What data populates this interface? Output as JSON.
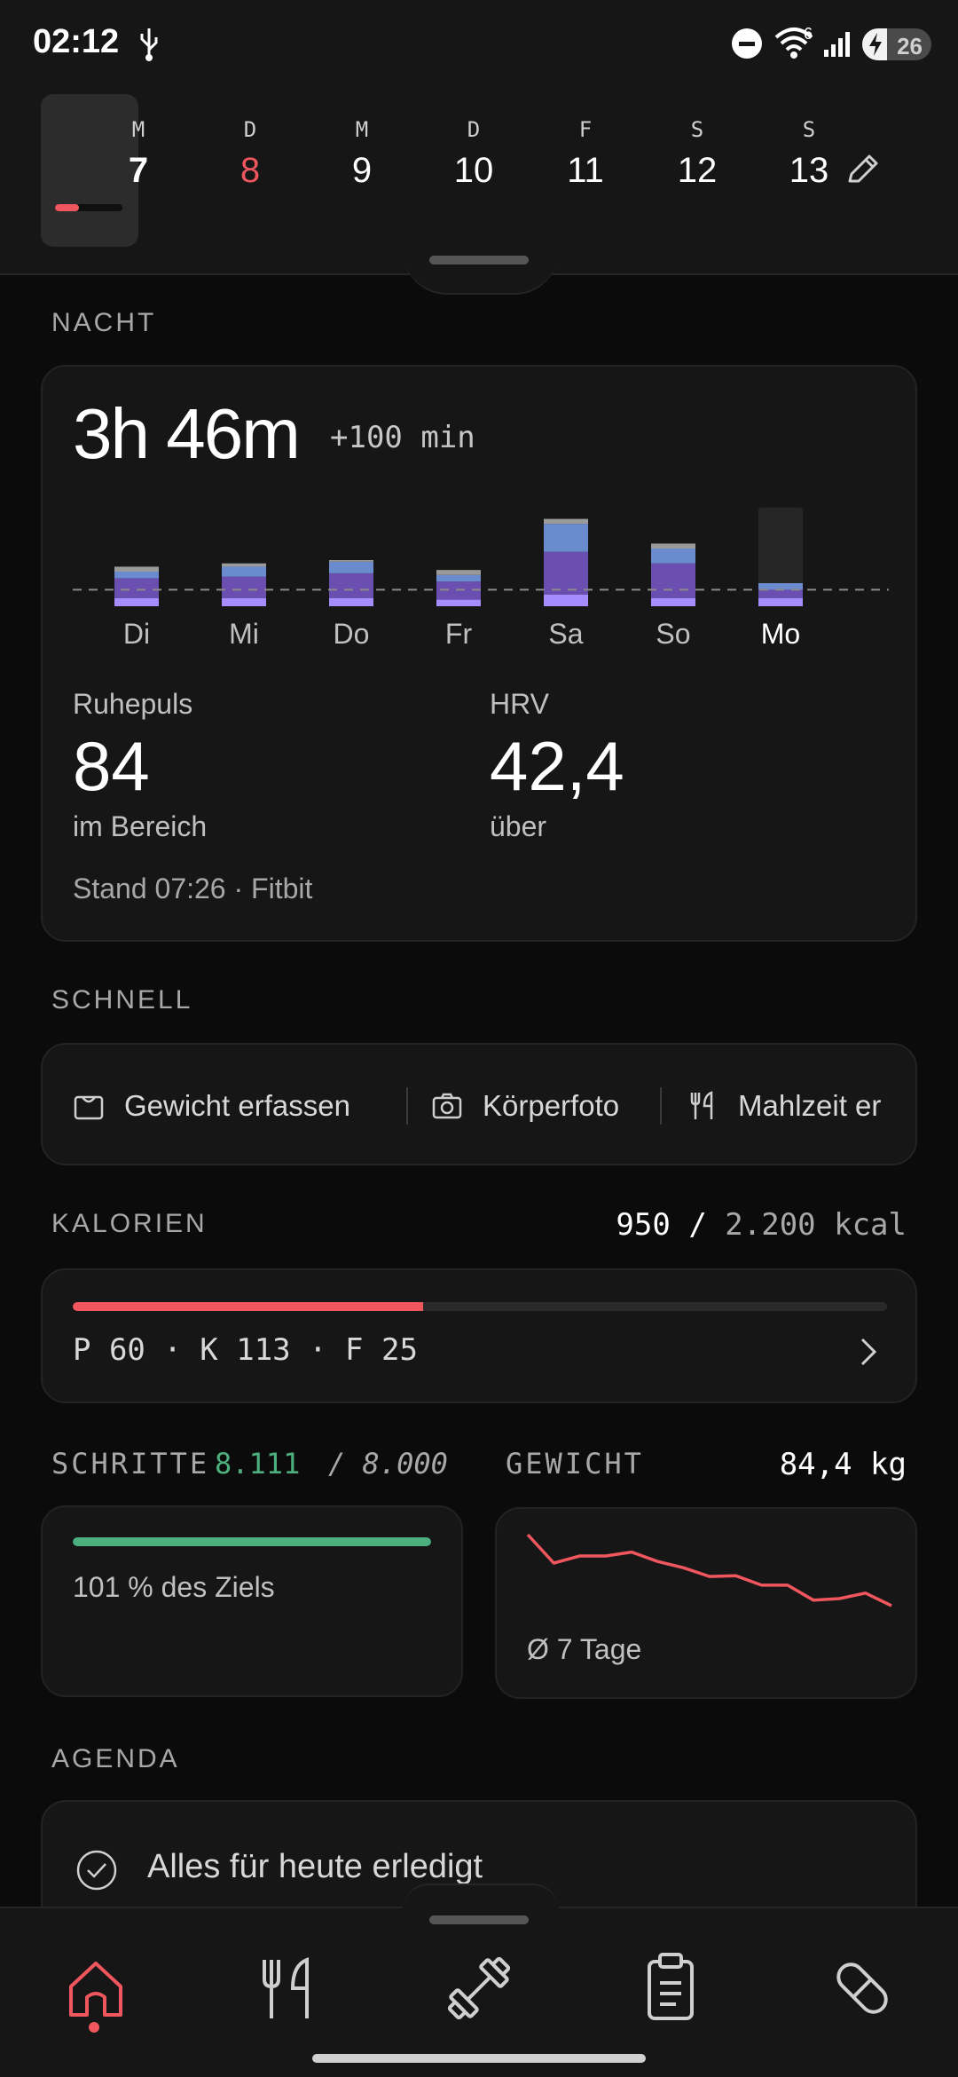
{
  "status_bar": {
    "time": "02:12",
    "wifi_badge": "6",
    "battery_level": "26"
  },
  "week": {
    "days": [
      {
        "weekday": "M",
        "date": "7",
        "active": true,
        "today": false
      },
      {
        "weekday": "D",
        "date": "8",
        "active": false,
        "today": true
      },
      {
        "weekday": "M",
        "date": "9",
        "active": false,
        "today": false
      },
      {
        "weekday": "D",
        "date": "10",
        "active": false,
        "today": false
      },
      {
        "weekday": "F",
        "date": "11",
        "active": false,
        "today": false
      },
      {
        "weekday": "S",
        "date": "12",
        "active": false,
        "today": false
      },
      {
        "weekday": "S",
        "date": "13",
        "active": false,
        "today": false
      }
    ],
    "active_day_progress": 0.35,
    "edit_icon": "pencil-icon"
  },
  "night": {
    "section_title": "NACHT",
    "duration": "3h 46m",
    "delta": "+100 min",
    "resting_hr_label": "Ruhepuls",
    "resting_hr_value": "84",
    "resting_hr_status": "im Bereich",
    "hrv_label": "HRV",
    "hrv_value": "42,4",
    "hrv_status": "über",
    "updated": "Stand 07:26 · Fitbit"
  },
  "chart_data": {
    "type": "bar",
    "stacked": true,
    "categories": [
      "Di",
      "Mi",
      "Do",
      "Fr",
      "Sa",
      "So",
      "Mo"
    ],
    "series": [
      {
        "values": [
          0.5,
          0.5,
          0.5,
          0.4,
          0.7,
          0.5,
          0.5
        ]
      },
      {
        "values": [
          1.2,
          1.3,
          1.5,
          1.1,
          2.6,
          2.1,
          0.5
        ]
      },
      {
        "values": [
          0.4,
          0.6,
          0.7,
          0.4,
          1.7,
          0.9,
          0.4
        ]
      },
      {
        "values": [
          0.3,
          0.2,
          0.1,
          0.3,
          0.3,
          0.3,
          0.0
        ]
      }
    ],
    "series_colors": [
      "#a58cff",
      "#6a4fb0",
      "#6a8ccf",
      "#9a9a9a"
    ],
    "target_line": 1.0,
    "ylim": [
      0,
      7
    ],
    "highlight_category": "Mo",
    "highlight_placeholder": 6.0,
    "grid": false
  },
  "quick": {
    "section_title": "SCHNELL",
    "actions": [
      {
        "label": "Gewicht erfassen",
        "icon": "scale-icon"
      },
      {
        "label": "Körperfoto",
        "icon": "camera-icon"
      },
      {
        "label": "Mahlzeit er",
        "icon": "utensils-icon"
      }
    ]
  },
  "calories": {
    "section_title": "KALORIEN",
    "consumed": "950",
    "separator": "/",
    "goal": "2.200 kcal",
    "progress": 0.43,
    "macros": "P 60 · K 113 · F 25"
  },
  "steps": {
    "section_title": "SCHRITTE",
    "count": "8.111",
    "goal": "/ 8.000",
    "progress": 1.0,
    "percent_text": "101 % des Ziels"
  },
  "weight": {
    "section_title": "GEWICHT",
    "value": "84,4 kg",
    "caption": "Ø 7 Tage",
    "trend": [
      10,
      6.4,
      7.3,
      7.3,
      7.8,
      6.6,
      5.8,
      4.7,
      4.8,
      3.6,
      3.6,
      1.7,
      1.9,
      2.6,
      1.0
    ]
  },
  "agenda": {
    "section_title": "AGENDA",
    "empty_text": "Alles für heute erledigt"
  },
  "nav": {
    "items": [
      "home-icon",
      "utensils-icon",
      "dumbbell-icon",
      "clipboard-icon",
      "pill-icon"
    ],
    "active": "home-icon",
    "accent": "#f0565e"
  }
}
